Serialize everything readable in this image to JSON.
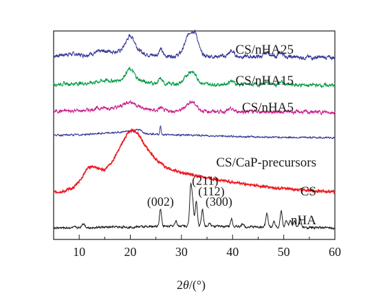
{
  "chart_data": {
    "type": "line",
    "title": "",
    "xlabel_main": "2",
    "xlabel_italic": "θ",
    "xlabel_unit": "/(°)",
    "ylabel": "",
    "xlim": [
      5,
      60
    ],
    "xticks": [
      "10",
      "20",
      "30",
      "40",
      "50",
      "60"
    ],
    "grid": false,
    "series": [
      {
        "name": "CS/nHA25",
        "color": "#2e3192",
        "base": 0.88,
        "baseline_pts": [
          [
            5,
            0.0
          ],
          [
            8,
            0.01
          ],
          [
            11,
            0.005
          ],
          [
            15,
            0.025
          ],
          [
            18,
            0.02
          ],
          [
            21,
            0.02
          ],
          [
            24,
            0.005
          ],
          [
            28,
            0.0
          ],
          [
            40,
            -0.002
          ],
          [
            60,
            -0.008
          ]
        ],
        "peaks": [
          [
            20.0,
            0.075,
            0.9
          ],
          [
            25.9,
            0.03,
            0.35
          ],
          [
            31.8,
            0.115,
            1.0
          ],
          [
            32.9,
            0.04,
            0.5
          ],
          [
            39.8,
            0.025,
            0.5
          ],
          [
            46.8,
            0.022,
            0.5
          ],
          [
            49.5,
            0.02,
            0.5
          ]
        ],
        "noise": 0.007
      },
      {
        "name": "CS/nHA15",
        "color": "#009944",
        "base": 0.745,
        "baseline_pts": [
          [
            5,
            0.0
          ],
          [
            12,
            0.005
          ],
          [
            15,
            0.018
          ],
          [
            18,
            0.015
          ],
          [
            22,
            0.015
          ],
          [
            25,
            0.003
          ],
          [
            30,
            0.0
          ],
          [
            45,
            -0.002
          ],
          [
            60,
            -0.006
          ]
        ],
        "peaks": [
          [
            19.9,
            0.055,
            0.9
          ],
          [
            25.9,
            0.022,
            0.35
          ],
          [
            31.9,
            0.062,
            1.0
          ],
          [
            39.7,
            0.018,
            0.5
          ],
          [
            46.8,
            0.016,
            0.5
          ],
          [
            49.5,
            0.014,
            0.5
          ]
        ],
        "noise": 0.0065
      },
      {
        "name": "CS/nHA5",
        "color": "#c71585",
        "base": 0.615,
        "baseline_pts": [
          [
            5,
            0.0
          ],
          [
            11,
            0.003
          ],
          [
            14,
            0.015
          ],
          [
            18,
            0.016
          ],
          [
            22,
            0.015
          ],
          [
            25,
            0.002
          ],
          [
            30,
            0.0
          ],
          [
            45,
            -0.002
          ],
          [
            60,
            -0.005
          ]
        ],
        "peaks": [
          [
            19.9,
            0.03,
            1.1
          ],
          [
            25.9,
            0.015,
            0.35
          ],
          [
            31.9,
            0.045,
            1.0
          ],
          [
            39.7,
            0.01,
            0.5
          ]
        ],
        "noise": 0.006
      },
      {
        "name": "CS/CaP-precursors",
        "color": "#2e3192",
        "base": 0.5,
        "baseline_pts": [
          [
            5,
            0.0
          ],
          [
            10,
            0.002
          ],
          [
            14,
            0.008
          ],
          [
            17,
            0.012
          ],
          [
            19,
            0.018
          ],
          [
            21,
            0.018
          ],
          [
            23,
            0.01
          ],
          [
            26,
            0.002
          ],
          [
            31,
            0.001
          ],
          [
            40,
            -0.006
          ],
          [
            50,
            -0.01
          ],
          [
            60,
            -0.012
          ]
        ],
        "peaks": [
          [
            25.9,
            0.045,
            0.12
          ],
          [
            21.5,
            0.012,
            0.6
          ]
        ],
        "noise": 0.003
      },
      {
        "name": "CS",
        "color": "#ed1c24",
        "base": 0.225,
        "baseline_pts": [
          [
            5,
            0.0
          ],
          [
            7,
            0.005
          ],
          [
            9,
            0.025
          ],
          [
            10.5,
            0.07
          ],
          [
            11.5,
            0.115
          ],
          [
            12.5,
            0.125
          ],
          [
            13.5,
            0.115
          ],
          [
            15,
            0.11
          ],
          [
            16.5,
            0.15
          ],
          [
            18,
            0.22
          ],
          [
            19.5,
            0.285
          ],
          [
            20.5,
            0.3
          ],
          [
            21.5,
            0.285
          ],
          [
            23,
            0.22
          ],
          [
            25,
            0.16
          ],
          [
            27,
            0.12
          ],
          [
            30,
            0.095
          ],
          [
            33,
            0.08
          ],
          [
            36,
            0.067
          ],
          [
            40,
            0.05
          ],
          [
            45,
            0.032
          ],
          [
            50,
            0.018
          ],
          [
            55,
            0.01
          ],
          [
            60,
            0.003
          ]
        ],
        "peaks": [],
        "noise": 0.004
      },
      {
        "name": "nHA",
        "color": "#1a1a1a",
        "base": 0.055,
        "baseline_pts": [
          [
            5,
            0.0
          ],
          [
            20,
            0.005
          ],
          [
            30,
            0.01
          ],
          [
            45,
            0.005
          ],
          [
            60,
            0.0
          ]
        ],
        "peaks": [
          [
            10.8,
            0.02,
            0.3
          ],
          [
            25.9,
            0.085,
            0.2
          ],
          [
            28.9,
            0.025,
            0.2
          ],
          [
            31.8,
            0.19,
            0.2
          ],
          [
            32.2,
            0.11,
            0.2
          ],
          [
            32.9,
            0.12,
            0.2
          ],
          [
            34.1,
            0.08,
            0.2
          ],
          [
            35.5,
            0.02,
            0.2
          ],
          [
            39.8,
            0.04,
            0.2
          ],
          [
            42.0,
            0.015,
            0.2
          ],
          [
            46.7,
            0.065,
            0.2
          ],
          [
            48.1,
            0.025,
            0.2
          ],
          [
            49.5,
            0.08,
            0.2
          ],
          [
            50.5,
            0.035,
            0.2
          ],
          [
            51.3,
            0.03,
            0.2
          ],
          [
            52.1,
            0.03,
            0.2
          ],
          [
            53.2,
            0.045,
            0.2
          ]
        ],
        "noise": 0.004
      }
    ],
    "peak_labels": [
      {
        "text": "(002)",
        "x": 25.9,
        "y": 0.175
      },
      {
        "text": "(211)",
        "x": 31.8,
        "y": 0.275
      },
      {
        "text": "(112)",
        "x": 32.9,
        "y": 0.225
      },
      {
        "text": "(300)",
        "x": 34.1,
        "y": 0.175
      }
    ]
  }
}
